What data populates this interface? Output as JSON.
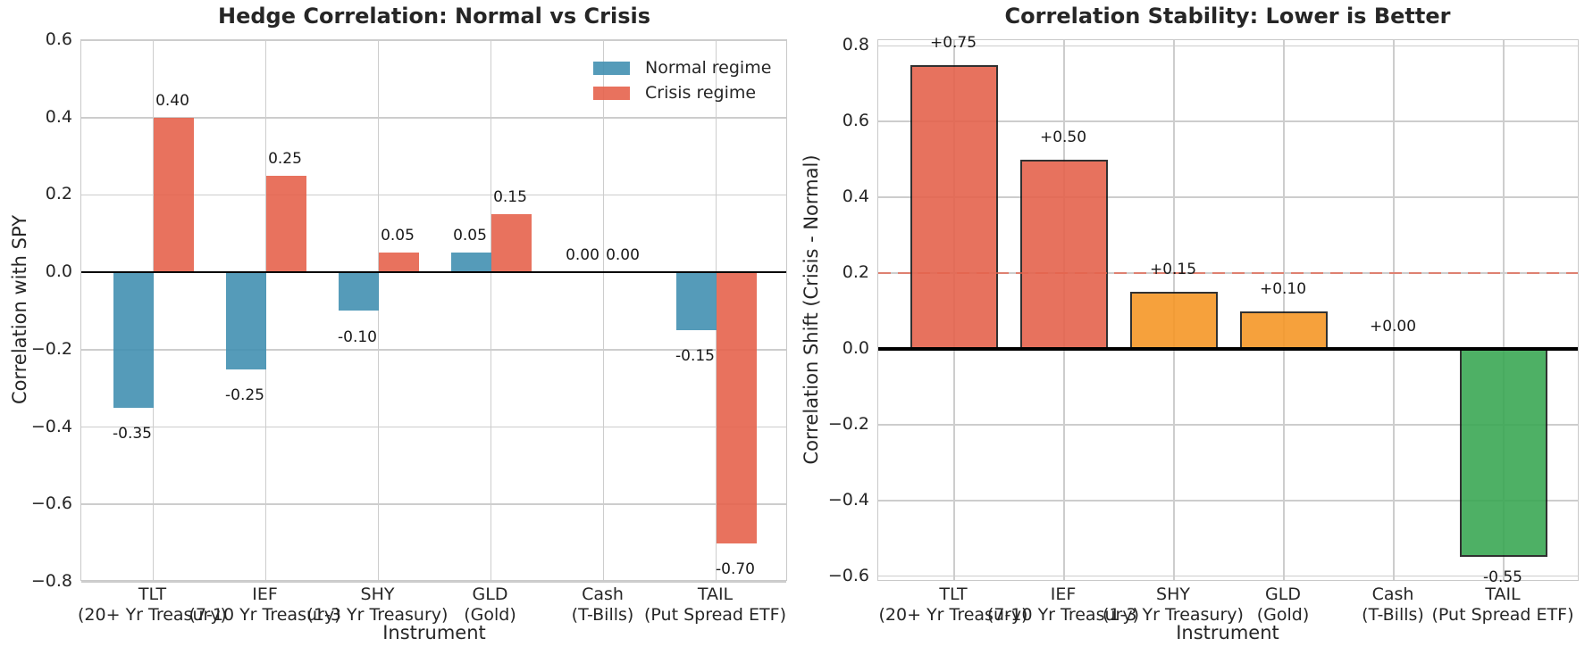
{
  "figure": {
    "background": "#ffffff"
  },
  "chart_data": [
    {
      "type": "bar",
      "title": "Hedge Correlation: Normal vs Crisis",
      "xlabel": "Instrument",
      "ylabel": "Correlation with SPY",
      "ylim": [
        -0.8,
        0.6
      ],
      "grid": true,
      "legend_position": "upper right",
      "yticks": [
        {
          "v": 0.6,
          "label": "0.6"
        },
        {
          "v": 0.4,
          "label": "0.4"
        },
        {
          "v": 0.2,
          "label": "0.2"
        },
        {
          "v": 0.0,
          "label": "0.0"
        },
        {
          "v": -0.2,
          "label": "−0.2"
        },
        {
          "v": -0.4,
          "label": "−0.4"
        },
        {
          "v": -0.6,
          "label": "−0.6"
        },
        {
          "v": -0.8,
          "label": "−0.8"
        }
      ],
      "categories": [
        {
          "symbol": "TLT",
          "desc": "(20+ Yr Treasury)"
        },
        {
          "symbol": "IEF",
          "desc": "(7-10 Yr Treasury)"
        },
        {
          "symbol": "SHY",
          "desc": "(1-3 Yr Treasury)"
        },
        {
          "symbol": "GLD",
          "desc": "(Gold)"
        },
        {
          "symbol": "Cash",
          "desc": "(T-Bills)"
        },
        {
          "symbol": "TAIL",
          "desc": "(Put Spread ETF)"
        }
      ],
      "series": [
        {
          "name": "Normal regime",
          "color": "#4390B1",
          "alpha": 0.9,
          "values": [
            -0.35,
            -0.25,
            -0.1,
            0.05,
            0.0,
            -0.15
          ],
          "labels": [
            "-0.35",
            "-0.25",
            "-0.10",
            "0.05",
            "0.00",
            "-0.15"
          ]
        },
        {
          "name": "Crisis regime",
          "color": "#E5634D",
          "alpha": 0.9,
          "values": [
            0.4,
            0.25,
            0.05,
            0.15,
            0.0,
            -0.7
          ],
          "labels": [
            "0.40",
            "0.25",
            "0.05",
            "0.15",
            "0.00",
            "-0.70"
          ]
        }
      ]
    },
    {
      "type": "bar",
      "title": "Correlation Stability: Lower is Better",
      "xlabel": "Instrument",
      "ylabel": "Correlation Shift (Crisis - Normal)",
      "ylim": [
        -0.615,
        0.815
      ],
      "grid": true,
      "bar_edge_color": "#1b1b1b",
      "threshold": {
        "y": 0.2,
        "color": "#E5634D",
        "style": "dashed"
      },
      "yticks": [
        {
          "v": 0.8,
          "label": "0.8"
        },
        {
          "v": 0.6,
          "label": "0.6"
        },
        {
          "v": 0.4,
          "label": "0.4"
        },
        {
          "v": 0.2,
          "label": "0.2"
        },
        {
          "v": 0.0,
          "label": "0.0"
        },
        {
          "v": -0.2,
          "label": "−0.2"
        },
        {
          "v": -0.4,
          "label": "−0.4"
        },
        {
          "v": -0.6,
          "label": "−0.6"
        }
      ],
      "categories": [
        {
          "symbol": "TLT",
          "desc": "(20+ Yr Treasury)"
        },
        {
          "symbol": "IEF",
          "desc": "(7-10 Yr Treasury)"
        },
        {
          "symbol": "SHY",
          "desc": "(1-3 Yr Treasury)"
        },
        {
          "symbol": "GLD",
          "desc": "(Gold)"
        },
        {
          "symbol": "Cash",
          "desc": "(T-Bills)"
        },
        {
          "symbol": "TAIL",
          "desc": "(Put Spread ETF)"
        }
      ],
      "series": [
        {
          "name": "Correlation shift",
          "alpha": 0.9,
          "colors": [
            "#E5634D",
            "#E5634D",
            "#F69727",
            "#F69727",
            "#3BA855",
            "#3BA855"
          ],
          "values": [
            0.75,
            0.5,
            0.15,
            0.1,
            0.0,
            -0.55
          ],
          "labels": [
            "+0.75",
            "+0.50",
            "+0.15",
            "+0.10",
            "+0.00",
            "-0.55"
          ]
        }
      ]
    }
  ]
}
